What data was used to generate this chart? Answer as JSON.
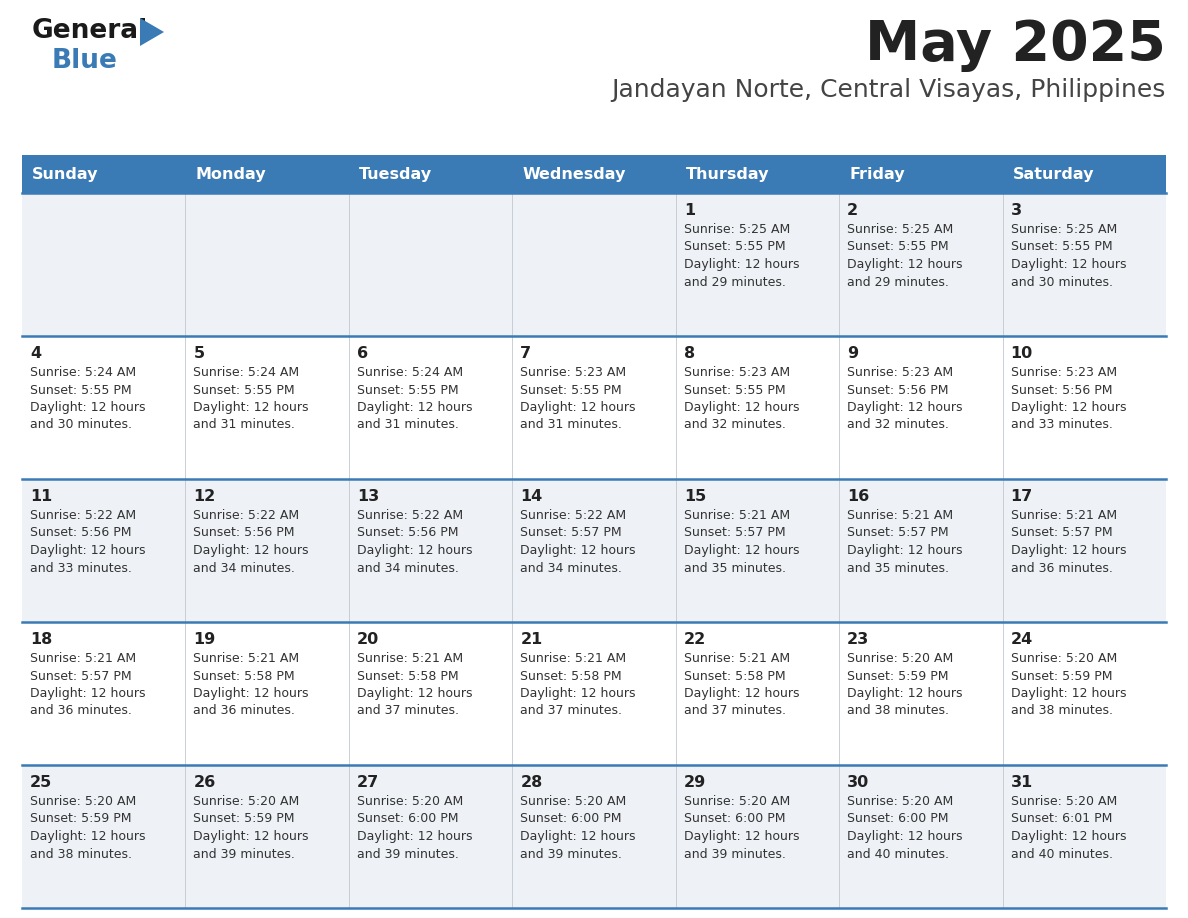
{
  "title": "May 2025",
  "subtitle": "Jandayan Norte, Central Visayas, Philippines",
  "header_bg": "#3a7ab5",
  "header_text_color": "#ffffff",
  "days_of_week": [
    "Sunday",
    "Monday",
    "Tuesday",
    "Wednesday",
    "Thursday",
    "Friday",
    "Saturday"
  ],
  "cell_bg_odd": "#eef2f7",
  "cell_bg_even": "#ffffff",
  "row_divider_color": "#3a7ab5",
  "text_color": "#333333",
  "calendar_data": [
    [
      "",
      "",
      "",
      "",
      "1\nSunrise: 5:25 AM\nSunset: 5:55 PM\nDaylight: 12 hours\nand 29 minutes.",
      "2\nSunrise: 5:25 AM\nSunset: 5:55 PM\nDaylight: 12 hours\nand 29 minutes.",
      "3\nSunrise: 5:25 AM\nSunset: 5:55 PM\nDaylight: 12 hours\nand 30 minutes."
    ],
    [
      "4\nSunrise: 5:24 AM\nSunset: 5:55 PM\nDaylight: 12 hours\nand 30 minutes.",
      "5\nSunrise: 5:24 AM\nSunset: 5:55 PM\nDaylight: 12 hours\nand 31 minutes.",
      "6\nSunrise: 5:24 AM\nSunset: 5:55 PM\nDaylight: 12 hours\nand 31 minutes.",
      "7\nSunrise: 5:23 AM\nSunset: 5:55 PM\nDaylight: 12 hours\nand 31 minutes.",
      "8\nSunrise: 5:23 AM\nSunset: 5:55 PM\nDaylight: 12 hours\nand 32 minutes.",
      "9\nSunrise: 5:23 AM\nSunset: 5:56 PM\nDaylight: 12 hours\nand 32 minutes.",
      "10\nSunrise: 5:23 AM\nSunset: 5:56 PM\nDaylight: 12 hours\nand 33 minutes."
    ],
    [
      "11\nSunrise: 5:22 AM\nSunset: 5:56 PM\nDaylight: 12 hours\nand 33 minutes.",
      "12\nSunrise: 5:22 AM\nSunset: 5:56 PM\nDaylight: 12 hours\nand 34 minutes.",
      "13\nSunrise: 5:22 AM\nSunset: 5:56 PM\nDaylight: 12 hours\nand 34 minutes.",
      "14\nSunrise: 5:22 AM\nSunset: 5:57 PM\nDaylight: 12 hours\nand 34 minutes.",
      "15\nSunrise: 5:21 AM\nSunset: 5:57 PM\nDaylight: 12 hours\nand 35 minutes.",
      "16\nSunrise: 5:21 AM\nSunset: 5:57 PM\nDaylight: 12 hours\nand 35 minutes.",
      "17\nSunrise: 5:21 AM\nSunset: 5:57 PM\nDaylight: 12 hours\nand 36 minutes."
    ],
    [
      "18\nSunrise: 5:21 AM\nSunset: 5:57 PM\nDaylight: 12 hours\nand 36 minutes.",
      "19\nSunrise: 5:21 AM\nSunset: 5:58 PM\nDaylight: 12 hours\nand 36 minutes.",
      "20\nSunrise: 5:21 AM\nSunset: 5:58 PM\nDaylight: 12 hours\nand 37 minutes.",
      "21\nSunrise: 5:21 AM\nSunset: 5:58 PM\nDaylight: 12 hours\nand 37 minutes.",
      "22\nSunrise: 5:21 AM\nSunset: 5:58 PM\nDaylight: 12 hours\nand 37 minutes.",
      "23\nSunrise: 5:20 AM\nSunset: 5:59 PM\nDaylight: 12 hours\nand 38 minutes.",
      "24\nSunrise: 5:20 AM\nSunset: 5:59 PM\nDaylight: 12 hours\nand 38 minutes."
    ],
    [
      "25\nSunrise: 5:20 AM\nSunset: 5:59 PM\nDaylight: 12 hours\nand 38 minutes.",
      "26\nSunrise: 5:20 AM\nSunset: 5:59 PM\nDaylight: 12 hours\nand 39 minutes.",
      "27\nSunrise: 5:20 AM\nSunset: 6:00 PM\nDaylight: 12 hours\nand 39 minutes.",
      "28\nSunrise: 5:20 AM\nSunset: 6:00 PM\nDaylight: 12 hours\nand 39 minutes.",
      "29\nSunrise: 5:20 AM\nSunset: 6:00 PM\nDaylight: 12 hours\nand 39 minutes.",
      "30\nSunrise: 5:20 AM\nSunset: 6:00 PM\nDaylight: 12 hours\nand 40 minutes.",
      "31\nSunrise: 5:20 AM\nSunset: 6:01 PM\nDaylight: 12 hours\nand 40 minutes."
    ]
  ]
}
